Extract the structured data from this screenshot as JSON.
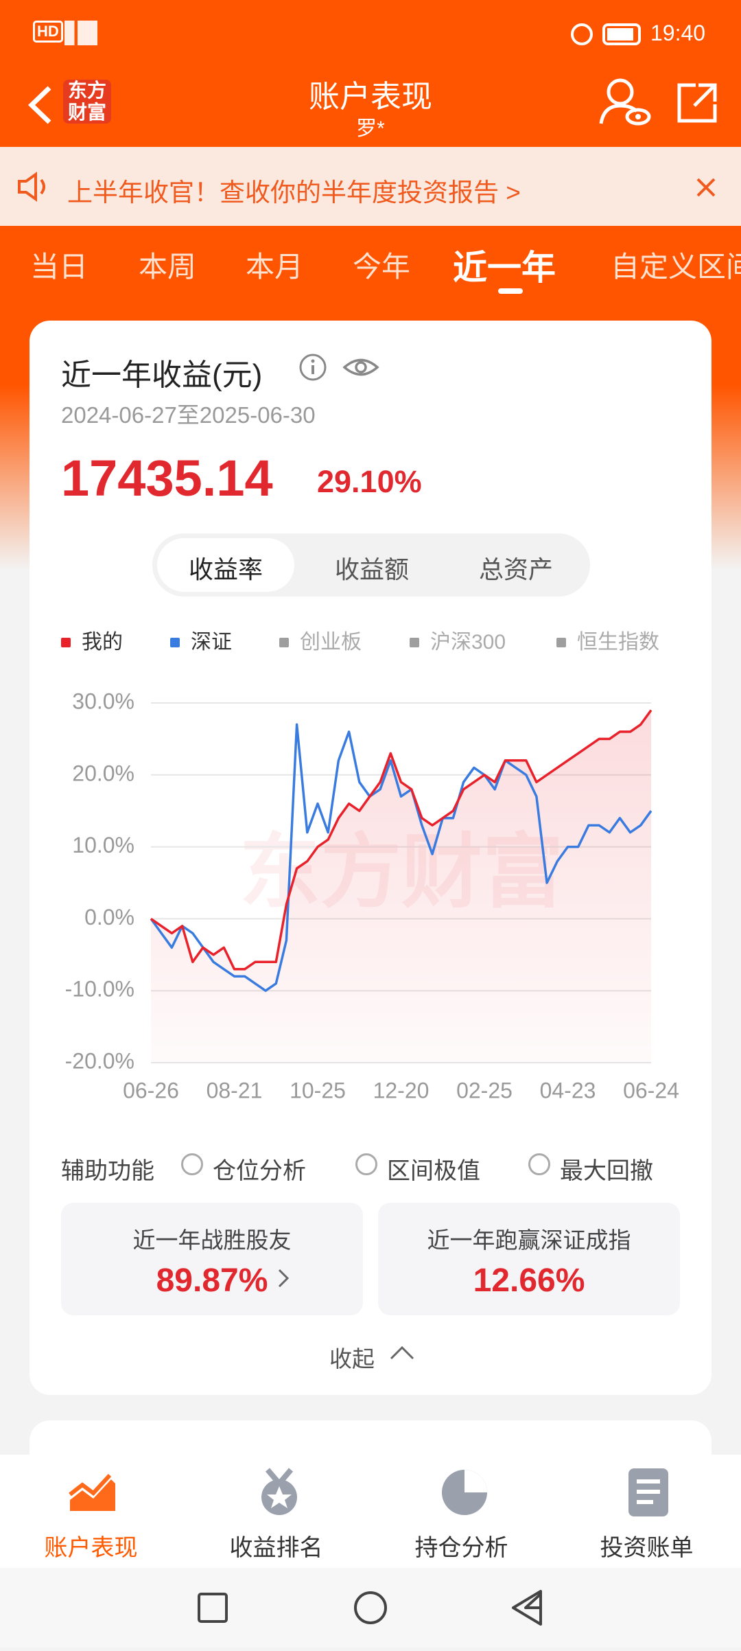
{
  "status_bar": {
    "time": "19:40"
  },
  "header": {
    "logo": [
      "东方",
      "财富"
    ],
    "title": "账户表现",
    "subtitle": "罗*"
  },
  "banner": {
    "text": "上半年收官！查收你的半年度投资报告 >"
  },
  "tabs": [
    "当日",
    "本周",
    "本月",
    "今年",
    "近一年",
    "自定义区间"
  ],
  "summary": {
    "title": "近一年收益(元)",
    "date_range": "2024-06-27至2025-06-30",
    "amount": "17435.14",
    "return": "29.10%"
  },
  "segments": [
    "收益率",
    "收益额",
    "总资产"
  ],
  "chart_data": {
    "type": "line",
    "watermark": "东方财富",
    "categories": [
      "06-26",
      null,
      null,
      null,
      null,
      null,
      null,
      null,
      "08-21",
      null,
      null,
      null,
      null,
      null,
      null,
      null,
      "10-25",
      null,
      null,
      null,
      null,
      null,
      null,
      null,
      "12-20",
      null,
      null,
      null,
      null,
      null,
      null,
      null,
      "02-25",
      null,
      null,
      null,
      null,
      null,
      null,
      null,
      "04-23",
      null,
      null,
      null,
      null,
      null,
      null,
      null,
      "06-24"
    ],
    "series": [
      {
        "name": "我的",
        "color": "#e8212b",
        "values": [
          0,
          -1,
          -2,
          -1,
          -6,
          -4,
          -5,
          -4,
          -7,
          -7,
          -6,
          -6,
          -6,
          2,
          7,
          8,
          10,
          11,
          14,
          16,
          15,
          17,
          19,
          23,
          19,
          18,
          14,
          13,
          14,
          15,
          18,
          19,
          20,
          19,
          22,
          22,
          22,
          19,
          20,
          21,
          22,
          23,
          24,
          25,
          25,
          26,
          26,
          27,
          29
        ]
      },
      {
        "name": "深证",
        "color": "#3a7be0",
        "values": [
          0,
          -2,
          -4,
          -1,
          -2,
          -4,
          -6,
          -7,
          -8,
          -8,
          -9,
          -10,
          -9,
          -3,
          27,
          12,
          16,
          12,
          22,
          26,
          19,
          17,
          18,
          22,
          17,
          18,
          13,
          9,
          14,
          14,
          19,
          21,
          20,
          18,
          22,
          21,
          20,
          17,
          5,
          8,
          10,
          10,
          13,
          13,
          12,
          14,
          12,
          13,
          15
        ]
      }
    ],
    "hidden_series": [
      {
        "name": "创业板",
        "color": "#9e9e9e"
      },
      {
        "name": "沪深300",
        "color": "#9e9e9e"
      },
      {
        "name": "恒生指数",
        "color": "#9e9e9e"
      }
    ],
    "ylim": [
      -20,
      30
    ],
    "yticks": [
      {
        "value": -20,
        "label": "-20.0%"
      },
      {
        "value": -10,
        "label": "-10.0%"
      },
      {
        "value": 0,
        "label": "0.0%"
      },
      {
        "value": 10,
        "label": "10.0%"
      },
      {
        "value": 20,
        "label": "20.0%"
      },
      {
        "value": 30,
        "label": "30.0%"
      }
    ],
    "grid": true,
    "area_series": 0
  },
  "aux": {
    "label": "辅助功能",
    "options": [
      "仓位分析",
      "区间极值",
      "最大回撤"
    ]
  },
  "stats": [
    {
      "label": "近一年战胜股友",
      "value": "89.87%"
    },
    {
      "label": "近一年跑赢深证成指",
      "value": "12.66%"
    }
  ],
  "collapse": "收起",
  "bottom_nav": [
    "账户表现",
    "收益排名",
    "持仓分析",
    "投资账单"
  ]
}
